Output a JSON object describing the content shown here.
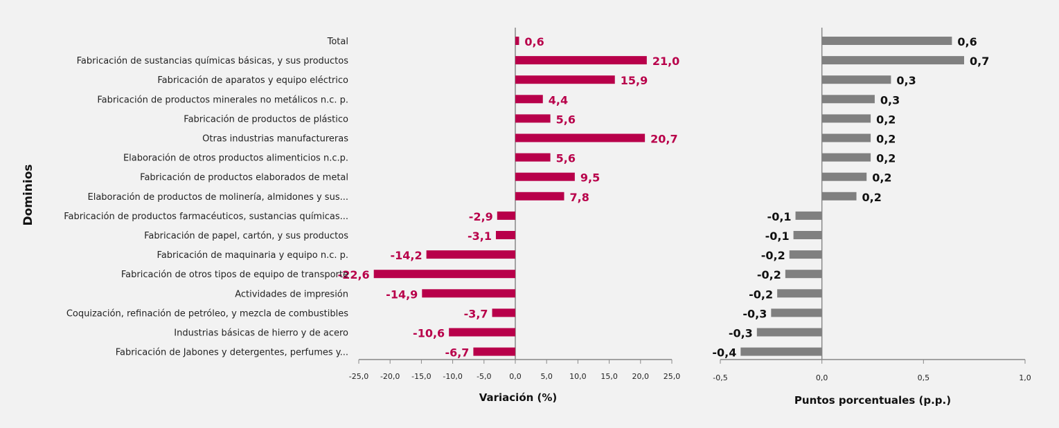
{
  "chart_data": [
    {
      "type": "bar",
      "orientation": "horizontal",
      "ylabel": "Dominios",
      "xlabel": "Variación (%)",
      "xlim": [
        -25,
        25
      ],
      "xticks": [
        "-25,0",
        "-20,0",
        "-15,0",
        "-10,0",
        "-5,0",
        "0,0",
        "5,0",
        "10,0",
        "15,0",
        "20,0",
        "25,0"
      ],
      "color": "#b8004a",
      "categories": [
        "Total",
        "Fabricación de sustancias químicas básicas, y sus productos",
        "Fabricación de aparatos y equipo eléctrico",
        "Fabricación de productos minerales no metálicos n.c. p.",
        "Fabricación de productos de plástico",
        "Otras industrias manufactureras",
        "Elaboración de otros productos alimenticios n.c.p.",
        "Fabricación de productos elaborados de metal",
        "Elaboración de productos de molinería, almidones y sus...",
        "Fabricación de productos farmacéuticos, sustancias químicas...",
        "Fabricación de papel, cartón, y sus productos",
        "Fabricación de maquinaria y equipo n.c. p.",
        "Fabricación de otros tipos de equipo de transporte",
        "Actividades de impresión",
        "Coquización, refinación de petróleo, y mezcla de combustibles",
        "Industrias básicas de hierro y de acero",
        "Fabricación de Jabones y detergentes, perfumes y..."
      ],
      "values": [
        0.6,
        21.0,
        15.9,
        4.4,
        5.6,
        20.7,
        5.6,
        9.5,
        7.8,
        -2.9,
        -3.1,
        -14.2,
        -22.6,
        -14.9,
        -3.7,
        -10.6,
        -6.7
      ],
      "labels": [
        "0,6",
        "21,0",
        "15,9",
        "4,4",
        "5,6",
        "20,7",
        "5,6",
        "9,5",
        "7,8",
        "-2,9",
        "-3,1",
        "-14,2",
        "-22,6",
        "-14,9",
        "-3,7",
        "-10,6",
        "-6,7"
      ]
    },
    {
      "type": "bar",
      "orientation": "horizontal",
      "xlabel": "Puntos porcentuales (p.p.)",
      "xlim": [
        -0.5,
        1.0
      ],
      "xticks": [
        "-0,5",
        "0,0",
        "0,5",
        "1,0"
      ],
      "color": "#808080",
      "values": [
        0.64,
        0.7,
        0.34,
        0.26,
        0.24,
        0.24,
        0.24,
        0.22,
        0.17,
        -0.13,
        -0.14,
        -0.16,
        -0.18,
        -0.22,
        -0.25,
        -0.32,
        -0.4
      ],
      "labels": [
        "0,6",
        "0,7",
        "0,3",
        "0,3",
        "0,2",
        "0,2",
        "0,2",
        "0,2",
        "0,2",
        "-0,1",
        "-0,1",
        "-0,2",
        "-0,2",
        "-0,2",
        "-0,3",
        "-0,3",
        "-0,4"
      ]
    }
  ]
}
